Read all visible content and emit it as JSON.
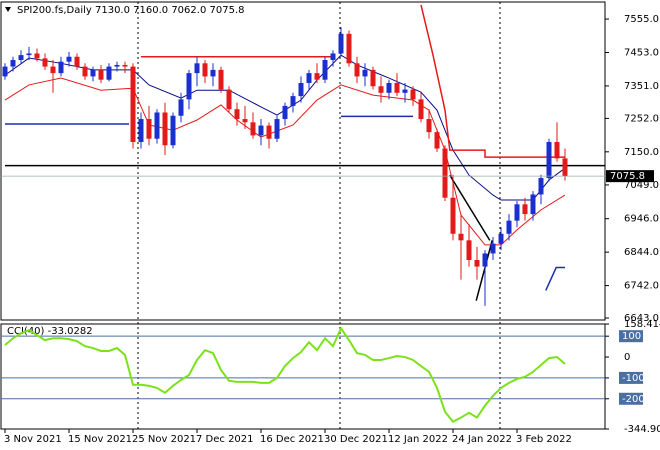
{
  "chart_data": [
    {
      "type": "candlestick",
      "title": "SPI200.fs,Daily  7130.0 7160.0 7062.0 7075.8",
      "categories": [
        "3 Nov 2021",
        null,
        null,
        null,
        null,
        null,
        null,
        null,
        "15 Nov 2021",
        null,
        null,
        null,
        null,
        null,
        null,
        null,
        "25 Nov 2021",
        null,
        null,
        null,
        null,
        null,
        null,
        null,
        "7 Dec 2021",
        null,
        null,
        null,
        null,
        null,
        null,
        null,
        "16 Dec 2021",
        null,
        null,
        null,
        null,
        null,
        null,
        null,
        "30 Dec 2021",
        null,
        null,
        null,
        null,
        null,
        null,
        null,
        "12 Jan 2022",
        null,
        null,
        null,
        null,
        null,
        null,
        null,
        "24 Jan 2022",
        null,
        null,
        null,
        null,
        null,
        null,
        null,
        "3 Feb 2022",
        null,
        null,
        null,
        null,
        null,
        null
      ],
      "open": [
        7380,
        7410,
        7430,
        7445,
        7450,
        7435,
        7410,
        7390,
        7425,
        7440,
        7410,
        7380,
        7400,
        7370,
        7410,
        7415,
        7410,
        7180,
        7250,
        7190,
        7270,
        7170,
        7260,
        7310,
        7390,
        7420,
        7380,
        7400,
        7340,
        7280,
        7250,
        7240,
        7200,
        7230,
        7190,
        7250,
        7290,
        7320,
        7360,
        7390,
        7370,
        7430,
        7450,
        7510,
        7420,
        7380,
        7400,
        7350,
        7330,
        7360,
        7330,
        7340,
        7310,
        7250,
        7210,
        7160,
        7010,
        6900,
        6880,
        6820,
        6800,
        6840,
        6870,
        6900,
        6940,
        6990,
        6960,
        7020,
        7070,
        7180,
        7130
      ],
      "high": [
        7420,
        7440,
        7460,
        7470,
        7465,
        7450,
        7430,
        7440,
        7455,
        7450,
        7420,
        7410,
        7415,
        7420,
        7425,
        7425,
        7420,
        7270,
        7290,
        7280,
        7300,
        7270,
        7330,
        7400,
        7440,
        7430,
        7420,
        7410,
        7350,
        7300,
        7290,
        7270,
        7250,
        7240,
        7260,
        7300,
        7330,
        7380,
        7400,
        7420,
        7440,
        7460,
        7530,
        7520,
        7440,
        7420,
        7410,
        7380,
        7370,
        7390,
        7360,
        7350,
        7330,
        7280,
        7220,
        7170,
        7080,
        6960,
        6930,
        6860,
        6850,
        6890,
        6920,
        6960,
        7000,
        7010,
        7030,
        7080,
        7190,
        7240,
        7160
      ],
      "low": [
        7370,
        7395,
        7420,
        7430,
        7425,
        7400,
        7330,
        7380,
        7410,
        7400,
        7370,
        7365,
        7360,
        7365,
        7395,
        7390,
        7160,
        7160,
        7170,
        7175,
        7140,
        7160,
        7240,
        7280,
        7350,
        7360,
        7350,
        7330,
        7270,
        7230,
        7220,
        7190,
        7170,
        7160,
        7180,
        7230,
        7270,
        7300,
        7340,
        7360,
        7360,
        7410,
        7440,
        7410,
        7360,
        7350,
        7340,
        7300,
        7310,
        7320,
        7300,
        7290,
        7240,
        7190,
        7150,
        7000,
        6880,
        6760,
        6800,
        6760,
        6680,
        6820,
        6850,
        6880,
        6920,
        6940,
        6940,
        6990,
        7060,
        7120,
        7062
      ],
      "close": [
        7410,
        7430,
        7445,
        7450,
        7435,
        7410,
        7390,
        7425,
        7440,
        7410,
        7380,
        7400,
        7370,
        7410,
        7415,
        7410,
        7180,
        7250,
        7190,
        7270,
        7170,
        7260,
        7310,
        7390,
        7420,
        7380,
        7400,
        7340,
        7280,
        7250,
        7240,
        7200,
        7230,
        7190,
        7250,
        7290,
        7320,
        7360,
        7390,
        7370,
        7430,
        7450,
        7510,
        7420,
        7380,
        7400,
        7350,
        7330,
        7360,
        7330,
        7340,
        7310,
        7250,
        7210,
        7160,
        7010,
        6900,
        6880,
        6820,
        6800,
        6840,
        6870,
        6900,
        6940,
        6990,
        6960,
        7020,
        7070,
        7180,
        7130,
        7075.8
      ],
      "up_color": "#1a2fd0",
      "down_color": "#e41a1a",
      "ylim": [
        6637,
        7607
      ],
      "yticks": [
        {
          "value": 7555,
          "label": "7555.0"
        },
        {
          "value": 7453,
          "label": "7453.0"
        },
        {
          "value": 7351,
          "label": "7351.0"
        },
        {
          "value": 7252,
          "label": "7252.0"
        },
        {
          "value": 7150,
          "label": "7150.0"
        },
        {
          "value": 7049,
          "label": "7049.0"
        },
        {
          "value": 6946,
          "label": "6946.0"
        },
        {
          "value": 6844,
          "label": "6844.0"
        },
        {
          "value": 6742,
          "label": "6742.0"
        },
        {
          "value": 6643,
          "label": "6643.0"
        }
      ],
      "overlays": [
        {
          "color": "#0a0a8a",
          "x": [
            0,
            3,
            7,
            11,
            16,
            18,
            22,
            24,
            28,
            32,
            34,
            37,
            39,
            42,
            44,
            48,
            52,
            54,
            56,
            58,
            61,
            62,
            66,
            68,
            70
          ],
          "values": [
            7384,
            7436,
            7420,
            7400,
            7400,
            7354,
            7314,
            7338,
            7338,
            7287,
            7262,
            7308,
            7369,
            7445,
            7415,
            7375,
            7332,
            7277,
            7155,
            7079,
            7018,
            7003,
            7003,
            7064,
            7100
          ]
        },
        {
          "color": "#e41a1a",
          "x": [
            0,
            3,
            7,
            12,
            16,
            18,
            21,
            24,
            27,
            29,
            32,
            36,
            39,
            42,
            46,
            51,
            53,
            55,
            57,
            60,
            62,
            64,
            67,
            70
          ],
          "values": [
            7308,
            7354,
            7375,
            7338,
            7344,
            7232,
            7216,
            7247,
            7293,
            7247,
            7195,
            7232,
            7308,
            7354,
            7323,
            7308,
            7277,
            7155,
            6957,
            6866,
            6866,
            6912,
            6973,
            7018
          ]
        },
        {
          "color": "#e41a1a",
          "x": [
            17,
            41
          ],
          "values": [
            7440,
            7440
          ]
        },
        {
          "color": "#1a2fb0",
          "x": [
            0,
            15.5
          ],
          "values": [
            7235,
            7235
          ]
        },
        {
          "color": "#1a2fb0",
          "x": [
            42,
            51
          ],
          "values": [
            7258,
            7258
          ]
        },
        {
          "color": "#000000",
          "x": [
            0,
            75
          ],
          "values": [
            7108,
            7108
          ]
        },
        {
          "color": "#e41a1a",
          "x": [
            52,
            53.5,
            55,
            55.6,
            60,
            60,
            70
          ],
          "values": [
            7598,
            7445,
            7277,
            7155,
            7155,
            7134,
            7134
          ]
        },
        {
          "color": "#000000",
          "x": [
            55.6,
            60.6
          ],
          "values": [
            7079,
            6880
          ]
        },
        {
          "color": "#000000",
          "x": [
            58.9,
            60.9
          ],
          "values": [
            6696,
            6880
          ]
        },
        {
          "color": "#1a2fb0",
          "x": [
            67.6,
            68.9,
            70
          ],
          "values": [
            6727,
            6797,
            6797
          ]
        }
      ]
    },
    {
      "type": "line",
      "title": "CCI(40) -33.0282",
      "color": "#7be21a",
      "values": [
        57,
        90,
        114,
        129,
        105,
        81,
        90,
        90,
        86,
        76,
        52,
        43,
        29,
        29,
        43,
        10,
        -133,
        -133,
        -138,
        -148,
        -171,
        -138,
        -110,
        -86,
        -14,
        33,
        19,
        -62,
        -114,
        -119,
        -119,
        -119,
        -124,
        -124,
        -100,
        -43,
        -5,
        24,
        71,
        33,
        90,
        52,
        138,
        81,
        19,
        10,
        -14,
        -14,
        -5,
        5,
        0,
        -14,
        -43,
        -71,
        -148,
        -262,
        -310,
        -290,
        -267,
        -290,
        -233,
        -186,
        -148,
        -124,
        -105,
        -95,
        -71,
        -38,
        -5,
        0,
        -33.0282
      ],
      "ylim": [
        -344.901,
        158.4144
      ],
      "yticks": [
        158.4144,
        100,
        0,
        -100,
        -200,
        -344.901
      ],
      "levels": [
        100,
        -100,
        -200
      ],
      "level_color": "#4a6fa5"
    }
  ]
}
